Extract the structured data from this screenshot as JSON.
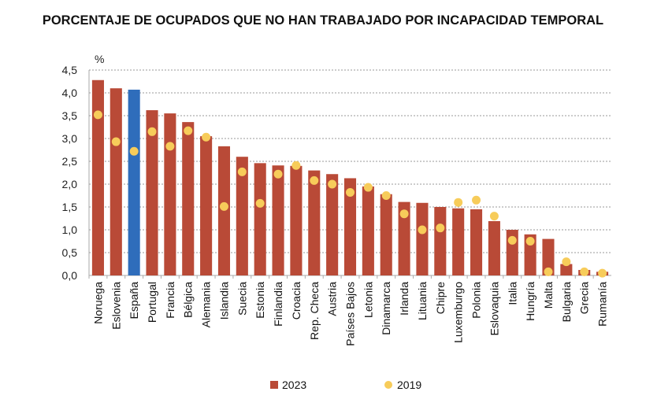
{
  "chart_data": {
    "type": "bar",
    "title": "PORCENTAJE DE OCUPADOS QUE NO HAN TRABAJADO POR INCAPACIDAD TEMPORAL",
    "ylabel": "%",
    "ylim": [
      0,
      4.5
    ],
    "yticks": [
      "0,0",
      "0,5",
      "1,0",
      "1,5",
      "2,0",
      "2,5",
      "3,0",
      "3,5",
      "4,0",
      "4,5"
    ],
    "grid": true,
    "legend": "bottom",
    "categories": [
      "Noruega",
      "Eslovenia",
      "España",
      "Portugal",
      "Francia",
      "Bélgica",
      "Alemania",
      "Islandia",
      "Suecia",
      "Estonia",
      "Finlandia",
      "Croacia",
      "Rep. Checa",
      "Austria",
      "Países Bajos",
      "Letonia",
      "Dinamarca",
      "Irlanda",
      "Lituania",
      "Chipre",
      "Luxemburgo",
      "Polonia",
      "Eslovaquia",
      "Italia",
      "Hungría",
      "Malta",
      "Bulgaria",
      "Grecia",
      "Rumanía"
    ],
    "highlight": "España",
    "series": [
      {
        "name": "2023",
        "type": "bar",
        "color": "#b94a37",
        "highlight_color": "#2f6dbb",
        "values": [
          4.28,
          4.1,
          4.07,
          3.62,
          3.55,
          3.36,
          3.05,
          2.83,
          2.6,
          2.46,
          2.41,
          2.4,
          2.3,
          2.22,
          2.13,
          1.95,
          1.78,
          1.61,
          1.59,
          1.5,
          1.47,
          1.45,
          1.19,
          1.0,
          0.9,
          0.8,
          0.25,
          0.12,
          0.08
        ]
      },
      {
        "name": "2019",
        "type": "scatter",
        "color": "#f7cc5a",
        "values": [
          3.52,
          2.93,
          2.72,
          3.15,
          2.83,
          3.17,
          3.03,
          1.51,
          2.27,
          1.58,
          2.22,
          2.41,
          2.08,
          2.0,
          1.82,
          1.93,
          1.75,
          1.35,
          1.0,
          1.04,
          1.6,
          1.65,
          1.3,
          0.77,
          0.75,
          0.08,
          0.3,
          0.08,
          0.05
        ]
      }
    ]
  }
}
